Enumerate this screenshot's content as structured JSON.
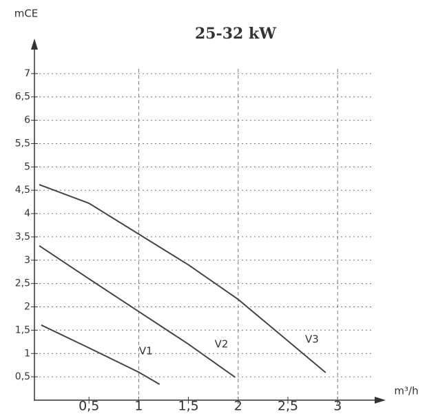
{
  "chart_data": {
    "type": "line",
    "title": "25-32 kW",
    "y_label": "mCE",
    "x_label": "m³/h",
    "xlim": [
      0,
      3.4
    ],
    "ylim": [
      0,
      7.5
    ],
    "xticks": [
      {
        "value": 0.5,
        "label": "0,5"
      },
      1,
      {
        "value": 1.5,
        "label": "1,5"
      },
      2,
      {
        "value": 2.5,
        "label": "2,5"
      },
      3
    ],
    "yticks": [
      {
        "value": 0.5,
        "label": "0,5"
      },
      1,
      {
        "value": 1.5,
        "label": "1,5"
      },
      2,
      {
        "value": 2.5,
        "label": "2,5"
      },
      3,
      {
        "value": 3.5,
        "label": "3,5"
      },
      4,
      {
        "value": 4.5,
        "label": "4,5"
      },
      5,
      {
        "value": 5.5,
        "label": "5,5"
      },
      6,
      {
        "value": 6.5,
        "label": "6,5"
      },
      7
    ],
    "grid": true,
    "series": [
      {
        "name": "V1",
        "color": "#444",
        "x": [
          0.02,
          0.5,
          1,
          1.21
        ],
        "values": [
          1.61,
          1.12,
          0.6,
          0.34
        ]
      },
      {
        "name": "V2",
        "color": "#444",
        "x": [
          0,
          0.5,
          1,
          1.5,
          1.97
        ],
        "values": [
          3.31,
          2.6,
          1.9,
          1.2,
          0.49
        ]
      },
      {
        "name": "V3",
        "color": "#444",
        "x": [
          0,
          0.5,
          1,
          1.5,
          2,
          2.5,
          2.88
        ],
        "values": [
          4.62,
          4.22,
          3.56,
          2.9,
          2.16,
          1.27,
          0.59
        ]
      }
    ]
  }
}
